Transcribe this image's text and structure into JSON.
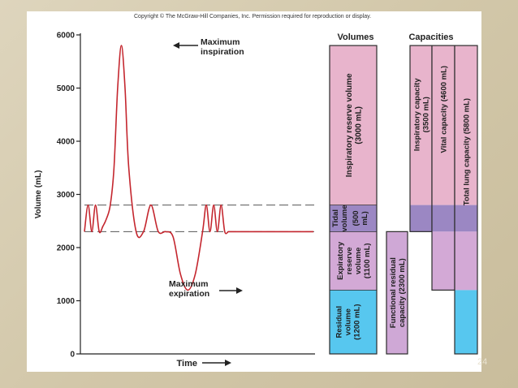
{
  "copyright": "Copyright © The McGraw-Hill Companies, Inc. Permission required for reproduction or display.",
  "page_number": "24",
  "colors": {
    "trace": "#c4262e",
    "irv_fill": "#e8b4cc",
    "tidal_fill": "#9b87c3",
    "erv_fill": "#d3a9d6",
    "rv_fill": "#57c7ef",
    "frc_fill": "#cfa8d6",
    "border": "#2b2b2b"
  },
  "chart_data": {
    "type": "line",
    "xlabel": "Time",
    "ylabel": "Volume (mL)",
    "ylim": [
      0,
      6000
    ],
    "yticks": [
      0,
      1000,
      2000,
      3000,
      4000,
      5000,
      6000
    ],
    "ytick_labels": [
      "0",
      "1000",
      "2000",
      "3000",
      "4000",
      "5000",
      "6000"
    ],
    "reference_lines": [
      2300,
      2800
    ],
    "series": [
      {
        "x": [
          0,
          0.5,
          1,
          1.5,
          2,
          2.5,
          3,
          3.5,
          4,
          4.5,
          5,
          5.5,
          6,
          7,
          8,
          9,
          10,
          11,
          12,
          13,
          14,
          15,
          16,
          16.5,
          17,
          17.5,
          18,
          18.5,
          19,
          19.5,
          20,
          21,
          22,
          23,
          24,
          25,
          26,
          26.5,
          27,
          27.5,
          28,
          28.5,
          29,
          29.5,
          30,
          30.5,
          31
        ],
        "values": [
          2300,
          2800,
          2300,
          2800,
          2300,
          2400,
          2550,
          2800,
          3500,
          5000,
          5800,
          5000,
          3500,
          2300,
          2300,
          2800,
          2300,
          2300,
          2200,
          1500,
          1200,
          1500,
          2300,
          2800,
          2300,
          2800,
          2300,
          2800,
          2300,
          2300,
          2300,
          2300,
          2300,
          2300,
          2300,
          2300,
          2300,
          2300,
          2300,
          2300,
          2300,
          2300,
          2300,
          2300,
          2300,
          2300,
          2300
        ]
      }
    ],
    "annotations": [
      {
        "text": [
          "Maximum",
          "inspiration"
        ],
        "value": 5800
      },
      {
        "text": [
          "Maximum",
          "expiration"
        ],
        "value": 1200
      }
    ],
    "bar_sections": {
      "volumes_title": "Volumes",
      "capacities_title": "Capacities",
      "volumes": [
        {
          "id": "irv",
          "lines": [
            "Inspiratory reserve volume",
            "(3000 mL)"
          ],
          "from": 2800,
          "to": 5800
        },
        {
          "id": "tidal",
          "lines": [
            "Tidal",
            "volume",
            "(500",
            "mL)"
          ],
          "from": 2300,
          "to": 2800
        },
        {
          "id": "erv",
          "lines": [
            "Expiratory",
            "reserve",
            "volume",
            "(1100 mL)"
          ],
          "from": 1200,
          "to": 2300
        },
        {
          "id": "rv",
          "lines": [
            "Residual",
            "volume",
            "(1200 mL)"
          ],
          "from": 0,
          "to": 1200
        }
      ],
      "capacities": [
        {
          "id": "frc",
          "lines": [
            "Functional residual",
            "capacity (2300 mL)"
          ],
          "from": 0,
          "to": 2300
        },
        {
          "id": "ic",
          "lines": [
            "Inspiratory capacity",
            "(3500 mL)"
          ],
          "from": 2300,
          "to": 5800
        },
        {
          "id": "vc",
          "lines": [
            "Vital capacity (4600 mL)"
          ],
          "from": 1200,
          "to": 5800
        },
        {
          "id": "tlc",
          "lines": [
            "Total lung capacity (5800 mL)"
          ],
          "from": 0,
          "to": 5800
        }
      ]
    }
  }
}
